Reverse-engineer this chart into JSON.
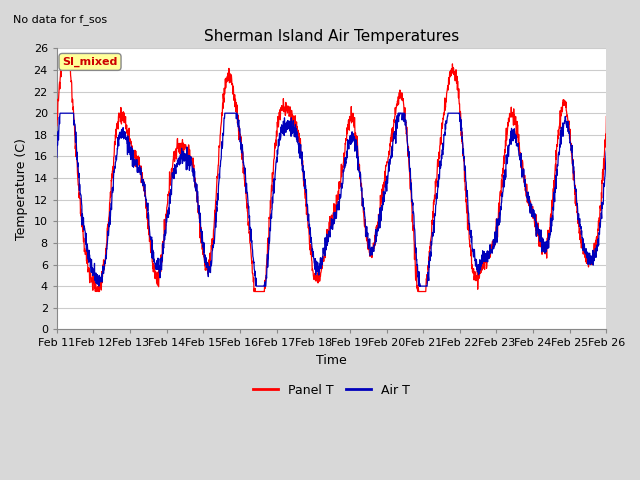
{
  "title": "Sherman Island Air Temperatures",
  "xlabel": "Time",
  "ylabel": "Temperature (C)",
  "note": "No data for f_sos",
  "legend_label": "SI_mixed",
  "ylim": [
    0,
    26
  ],
  "yticks": [
    0,
    2,
    4,
    6,
    8,
    10,
    12,
    14,
    16,
    18,
    20,
    22,
    24,
    26
  ],
  "xtick_labels": [
    "Feb 11",
    "Feb 12",
    "Feb 13",
    "Feb 14",
    "Feb 15",
    "Feb 16",
    "Feb 17",
    "Feb 18",
    "Feb 19",
    "Feb 20",
    "Feb 21",
    "Feb 22",
    "Feb 23",
    "Feb 24",
    "Feb 25",
    "Feb 26"
  ],
  "panel_color": "#ff0000",
  "air_color": "#0000bb",
  "background_color": "#d8d8d8",
  "plot_bg_color": "#ffffff",
  "grid_color": "#cccccc",
  "legend_box_color": "#ffff99",
  "legend_box_edge": "#cc0000"
}
